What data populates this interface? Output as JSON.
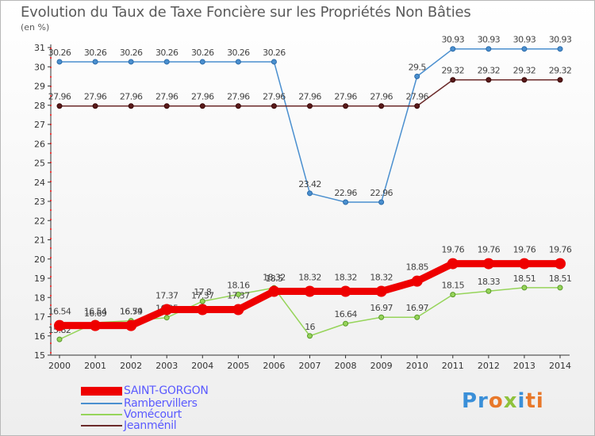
{
  "header": {
    "title": "Evolution du Taux de Taxe Foncière sur les Propriétés Non Bâties",
    "unit": "(en %)"
  },
  "logo": {
    "text": "Proxiti"
  },
  "chart_data": {
    "type": "line",
    "title": "Evolution du Taux de Taxe Foncière sur les Propriétés Non Bâties",
    "ylabel": "(en %)",
    "xlabel": "",
    "ylim": [
      15,
      31
    ],
    "yticks": [
      15,
      16,
      17,
      18,
      19,
      20,
      21,
      22,
      23,
      24,
      25,
      26,
      27,
      28,
      29,
      30,
      31
    ],
    "x": [
      "2000",
      "2001",
      "2002",
      "2003",
      "2004",
      "2005",
      "2006",
      "2007",
      "2008",
      "2009",
      "2010",
      "2011",
      "2012",
      "2013",
      "2014"
    ],
    "grid": false,
    "legend": "bottom-left",
    "series": [
      {
        "name": "Rambervillers",
        "color": "#4a8fcf",
        "values": [
          30.26,
          30.26,
          30.26,
          30.26,
          30.26,
          30.26,
          30.26,
          23.42,
          22.96,
          22.96,
          29.5,
          30.93,
          30.93,
          30.93,
          30.93
        ],
        "labels": [
          "30.26",
          "30.26",
          "30.26",
          "30.26",
          "30.26",
          "30.26",
          "30.26",
          "23.42",
          "22.96",
          "22.96",
          "29.5",
          "30.93",
          "30.93",
          "30.93",
          "30.93"
        ]
      },
      {
        "name": "Jeanménil",
        "color": "#6b2a2a",
        "values": [
          27.96,
          27.96,
          27.96,
          27.96,
          27.96,
          27.96,
          27.96,
          27.96,
          27.96,
          27.96,
          27.96,
          29.32,
          29.32,
          29.32,
          29.32
        ],
        "labels": [
          "27.96",
          "27.96",
          "27.96",
          "27.96",
          "27.96",
          "27.96",
          "27.96",
          "27.96",
          "27.96",
          "27.96",
          "27.96",
          "29.32",
          "29.32",
          "29.32",
          "29.32"
        ]
      },
      {
        "name": "Vomécourt",
        "color": "#96d45a",
        "values": [
          15.82,
          16.69,
          16.79,
          16.95,
          17.8,
          18.16,
          18.5,
          16,
          16.64,
          16.97,
          16.97,
          18.15,
          18.33,
          18.51,
          18.51
        ],
        "labels": [
          "15.82",
          "16.69",
          "16.79",
          "16.95",
          "17.8",
          "18.16",
          "18.5",
          "16",
          "16.64",
          "16.97",
          "16.97",
          "18.15",
          "18.33",
          "18.51",
          "18.51"
        ]
      },
      {
        "name": "SAINT-GORGON",
        "color": "#ee0000",
        "values": [
          16.54,
          16.54,
          16.54,
          17.37,
          17.37,
          17.37,
          18.32,
          18.32,
          18.32,
          18.32,
          18.85,
          19.76,
          19.76,
          19.76,
          19.76
        ],
        "labels": [
          "16.54",
          "16.54",
          "16.54",
          "17.37",
          "17.37",
          "17.37",
          "18.32",
          "18.32",
          "18.32",
          "18.32",
          "18.85",
          "19.76",
          "19.76",
          "19.76",
          "19.76"
        ]
      }
    ],
    "legend_order": [
      "SAINT-GORGON",
      "Rambervillers",
      "Vomécourt",
      "Jeanménil"
    ]
  }
}
